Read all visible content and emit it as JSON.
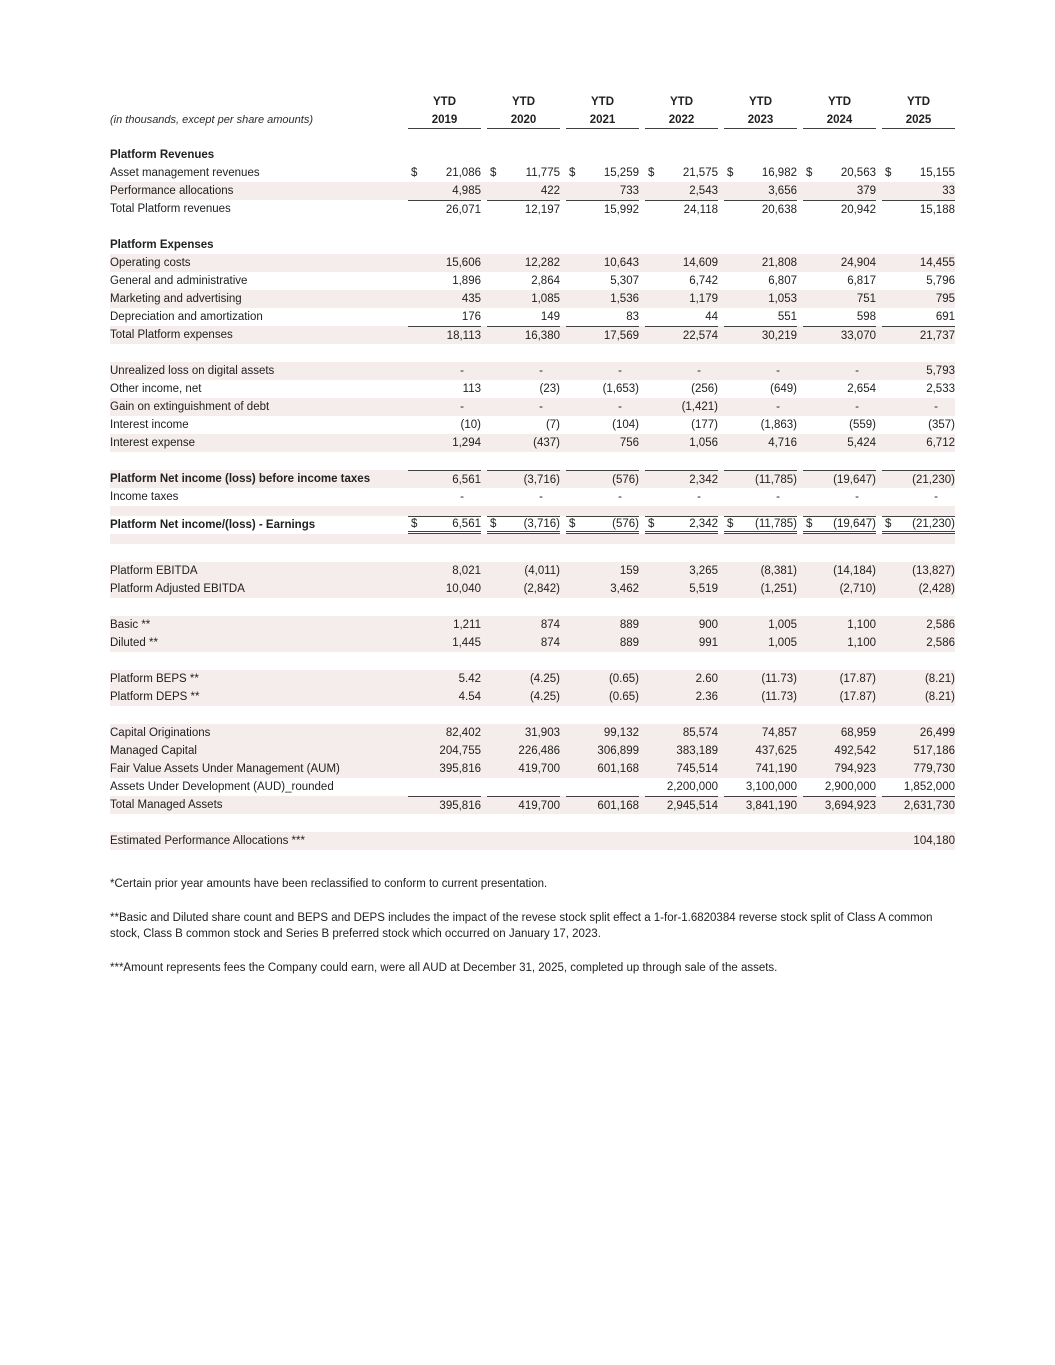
{
  "page": {
    "meta_label": "(in thousands, except per share amounts)"
  },
  "colors": {
    "row_shade": "#f5edeb",
    "rule": "#404040"
  },
  "table": {
    "period_label": "YTD",
    "years": [
      "2019",
      "2020",
      "2021",
      "2022",
      "2023",
      "2024",
      "2025"
    ],
    "rows": [
      {
        "type": "section",
        "label": "Platform Revenues"
      },
      {
        "type": "data",
        "label": "Asset management revenues",
        "dollar": true,
        "values": [
          "21,086",
          "11,775",
          "15,259",
          "21,575",
          "16,982",
          "20,563",
          "15,155"
        ]
      },
      {
        "type": "data",
        "label": "Performance allocations",
        "shaded": true,
        "values": [
          "4,985",
          "422",
          "733",
          "2,543",
          "3,656",
          "379",
          "33"
        ]
      },
      {
        "type": "data",
        "label": "Total Platform revenues",
        "top_border": true,
        "values": [
          "26,071",
          "12,197",
          "15,992",
          "24,118",
          "20,638",
          "20,942",
          "15,188"
        ]
      },
      {
        "type": "spacer"
      },
      {
        "type": "section",
        "label": "Platform Expenses"
      },
      {
        "type": "data",
        "label": "Operating costs",
        "shaded": true,
        "values": [
          "15,606",
          "12,282",
          "10,643",
          "14,609",
          "21,808",
          "24,904",
          "14,455"
        ]
      },
      {
        "type": "data",
        "label": "General and administrative",
        "values": [
          "1,896",
          "2,864",
          "5,307",
          "6,742",
          "6,807",
          "6,817",
          "5,796"
        ]
      },
      {
        "type": "data",
        "label": "Marketing and advertising",
        "shaded": true,
        "values": [
          "435",
          "1,085",
          "1,536",
          "1,179",
          "1,053",
          "751",
          "795"
        ]
      },
      {
        "type": "data",
        "label": "Depreciation and amortization",
        "values": [
          "176",
          "149",
          "83",
          "44",
          "551",
          "598",
          "691"
        ]
      },
      {
        "type": "data",
        "label": "Total Platform expenses",
        "shaded": true,
        "top_border": true,
        "values": [
          "18,113",
          "16,380",
          "17,569",
          "22,574",
          "30,219",
          "33,070",
          "21,737"
        ]
      },
      {
        "type": "spacer"
      },
      {
        "type": "data",
        "label": "Unrealized loss on digital assets",
        "shaded": true,
        "values": [
          "-",
          "-",
          "-",
          "-",
          "-",
          "-",
          "5,793"
        ]
      },
      {
        "type": "data",
        "label": "Other income, net",
        "values": [
          "113",
          "(23)",
          "(1,653)",
          "(256)",
          "(649)",
          "2,654",
          "2,533"
        ]
      },
      {
        "type": "data",
        "label": "Gain on extinguishment of debt",
        "shaded": true,
        "values": [
          "-",
          "-",
          "-",
          "(1,421)",
          "-",
          "-",
          "-"
        ]
      },
      {
        "type": "data",
        "label": "Interest income",
        "values": [
          "(10)",
          "(7)",
          "(104)",
          "(177)",
          "(1,863)",
          "(559)",
          "(357)"
        ]
      },
      {
        "type": "data",
        "label": "Interest expense",
        "shaded": true,
        "values": [
          "1,294",
          "(437)",
          "756",
          "1,056",
          "4,716",
          "5,424",
          "6,712"
        ]
      },
      {
        "type": "spacer"
      },
      {
        "type": "data",
        "label": "Platform Net income (loss) before income taxes",
        "bold": true,
        "shaded": true,
        "top_border": true,
        "values": [
          "6,561",
          "(3,716)",
          "(576)",
          "2,342",
          "(11,785)",
          "(19,647)",
          "(21,230)"
        ]
      },
      {
        "type": "data",
        "label": "Income taxes",
        "values": [
          "-",
          "-",
          "-",
          "-",
          "-",
          "-",
          "-"
        ]
      },
      {
        "type": "thin",
        "shaded": true
      },
      {
        "type": "data",
        "label": "Platform Net income/(loss) - Earnings",
        "bold": true,
        "dollar": true,
        "top_border": true,
        "double_bottom": true,
        "values": [
          "6,561",
          "(3,716)",
          "(576)",
          "2,342",
          "(11,785)",
          "(19,647)",
          "(21,230)"
        ]
      },
      {
        "type": "thin",
        "shaded": true
      },
      {
        "type": "spacer"
      },
      {
        "type": "data",
        "label": "Platform EBITDA",
        "shaded": true,
        "values": [
          "8,021",
          "(4,011)",
          "159",
          "3,265",
          "(8,381)",
          "(14,184)",
          "(13,827)"
        ]
      },
      {
        "type": "data",
        "label": "Platform Adjusted EBITDA",
        "shaded": true,
        "values": [
          "10,040",
          "(2,842)",
          "3,462",
          "5,519",
          "(1,251)",
          "(2,710)",
          "(2,428)"
        ]
      },
      {
        "type": "spacer"
      },
      {
        "type": "data",
        "label": "Basic **",
        "shaded": true,
        "values": [
          "1,211",
          "874",
          "889",
          "900",
          "1,005",
          "1,100",
          "2,586"
        ]
      },
      {
        "type": "data",
        "label": "Diluted **",
        "shaded": true,
        "values": [
          "1,445",
          "874",
          "889",
          "991",
          "1,005",
          "1,100",
          "2,586"
        ]
      },
      {
        "type": "spacer"
      },
      {
        "type": "data",
        "label": "Platform BEPS **",
        "shaded": true,
        "values": [
          "5.42",
          "(4.25)",
          "(0.65)",
          "2.60",
          "(11.73)",
          "(17.87)",
          "(8.21)"
        ]
      },
      {
        "type": "data",
        "label": "Platform DEPS **",
        "shaded": true,
        "values": [
          "4.54",
          "(4.25)",
          "(0.65)",
          "2.36",
          "(11.73)",
          "(17.87)",
          "(8.21)"
        ]
      },
      {
        "type": "spacer"
      },
      {
        "type": "data",
        "label": "Capital Originations",
        "shaded": true,
        "values": [
          "82,402",
          "31,903",
          "99,132",
          "85,574",
          "74,857",
          "68,959",
          "26,499"
        ]
      },
      {
        "type": "data",
        "label": "Managed Capital",
        "shaded": true,
        "values": [
          "204,755",
          "226,486",
          "306,899",
          "383,189",
          "437,625",
          "492,542",
          "517,186"
        ]
      },
      {
        "type": "data",
        "label": "Fair Value Assets Under Management (AUM)",
        "shaded": true,
        "values": [
          "395,816",
          "419,700",
          "601,168",
          "745,514",
          "741,190",
          "794,923",
          "779,730"
        ]
      },
      {
        "type": "data",
        "label": "Assets Under Development (AUD)_rounded",
        "values": [
          "",
          "",
          "",
          "2,200,000",
          "3,100,000",
          "2,900,000",
          "1,852,000"
        ]
      },
      {
        "type": "data",
        "label": "Total Managed Assets",
        "shaded": true,
        "top_border": true,
        "values": [
          "395,816",
          "419,700",
          "601,168",
          "2,945,514",
          "3,841,190",
          "3,694,923",
          "2,631,730"
        ]
      },
      {
        "type": "spacer"
      },
      {
        "type": "data",
        "label": "Estimated Performance Allocations ***",
        "shaded": true,
        "values": [
          "",
          "",
          "",
          "",
          "",
          "",
          "104,180"
        ]
      }
    ]
  },
  "footnotes": [
    "*Certain prior year amounts have been reclassified to conform to current presentation.",
    "**Basic and Diluted share count and BEPS and DEPS includes the impact of the revese stock split effect a 1-for-1.6820384 reverse stock split of Class A common stock, Class B common stock and Series B preferred stock which occurred on January 17, 2023.",
    "***Amount represents fees the Company could earn, were all AUD at December 31, 2025, completed up through sale of the assets."
  ]
}
